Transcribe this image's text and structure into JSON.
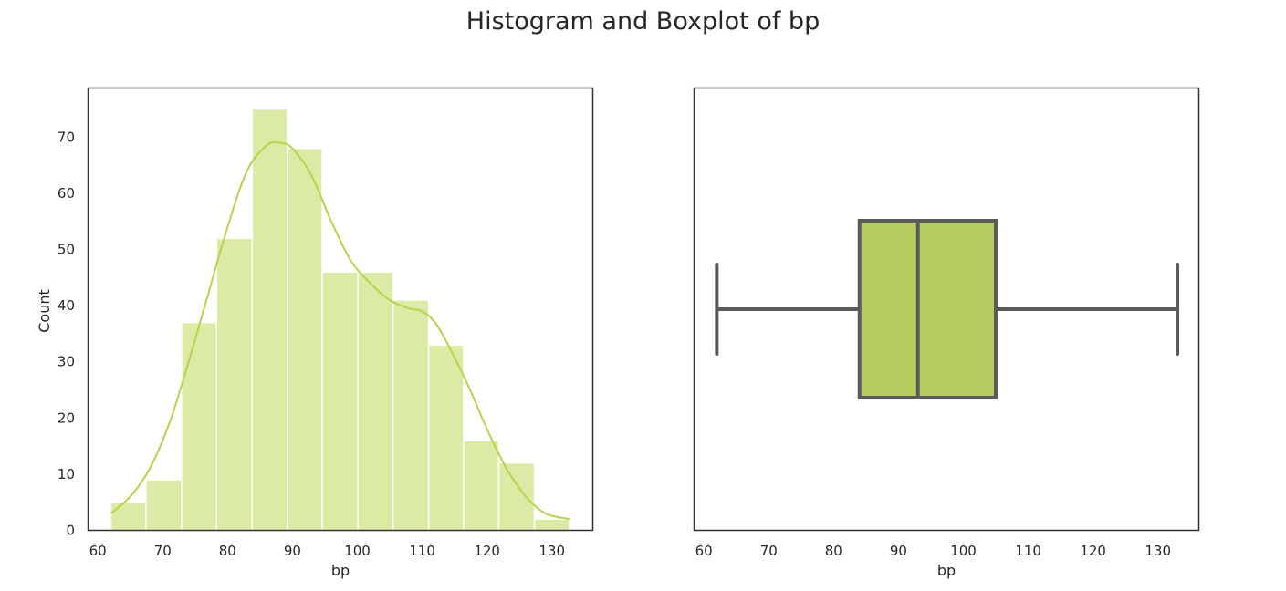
{
  "title": "Histogram and Boxplot of bp",
  "colors": {
    "bar_fill": "#dbeaa4",
    "kde_line": "#b5d44a",
    "box_fill": "#b5cd62",
    "box_line": "#5b5b5b",
    "axes": "#333333"
  },
  "chart_data": [
    {
      "type": "bar",
      "subtype": "histogram",
      "bins": [
        {
          "x0": 62.0,
          "x1": 67.4,
          "count": 5
        },
        {
          "x0": 67.4,
          "x1": 72.9,
          "count": 9
        },
        {
          "x0": 72.9,
          "x1": 78.3,
          "count": 37
        },
        {
          "x0": 78.3,
          "x1": 83.8,
          "count": 52
        },
        {
          "x0": 83.8,
          "x1": 89.2,
          "count": 75
        },
        {
          "x0": 89.2,
          "x1": 94.6,
          "count": 68
        },
        {
          "x0": 94.6,
          "x1": 100.1,
          "count": 46
        },
        {
          "x0": 100.1,
          "x1": 105.5,
          "count": 46
        },
        {
          "x0": 105.5,
          "x1": 111.0,
          "count": 41
        },
        {
          "x0": 111.0,
          "x1": 116.4,
          "count": 33
        },
        {
          "x0": 116.4,
          "x1": 121.8,
          "count": 16
        },
        {
          "x0": 121.8,
          "x1": 127.3,
          "count": 12
        },
        {
          "x0": 127.3,
          "x1": 132.7,
          "count": 2
        }
      ],
      "kde": {
        "x": [
          62,
          65,
          68,
          71,
          74,
          77,
          80,
          83,
          86,
          88,
          90,
          93,
          96,
          99,
          102,
          105,
          108,
          110,
          112,
          114,
          117,
          120,
          123,
          126,
          129,
          132.7
        ],
        "y": [
          3,
          6,
          11,
          19,
          30,
          42,
          54,
          64,
          68.5,
          69,
          68,
          63,
          55,
          48,
          44,
          41,
          39.5,
          39,
          37,
          33,
          26,
          18,
          11,
          6,
          3,
          2
        ]
      },
      "xlabel": "bp",
      "ylabel": "Count",
      "xlim": [
        58.5,
        136.3
      ],
      "ylim": [
        0,
        78.75
      ],
      "xticks": [
        60,
        70,
        80,
        90,
        100,
        110,
        120,
        130
      ],
      "yticks": [
        0,
        10,
        20,
        30,
        40,
        50,
        60,
        70
      ],
      "grid": false
    },
    {
      "type": "boxplot",
      "orientation": "horizontal",
      "whisker_low": 62,
      "q1": 84,
      "median": 93,
      "q3": 105,
      "whisker_high": 133,
      "xlabel": "bp",
      "xlim": [
        58.5,
        136.3
      ],
      "xticks": [
        60,
        70,
        80,
        90,
        100,
        110,
        120,
        130
      ],
      "grid": false
    }
  ]
}
